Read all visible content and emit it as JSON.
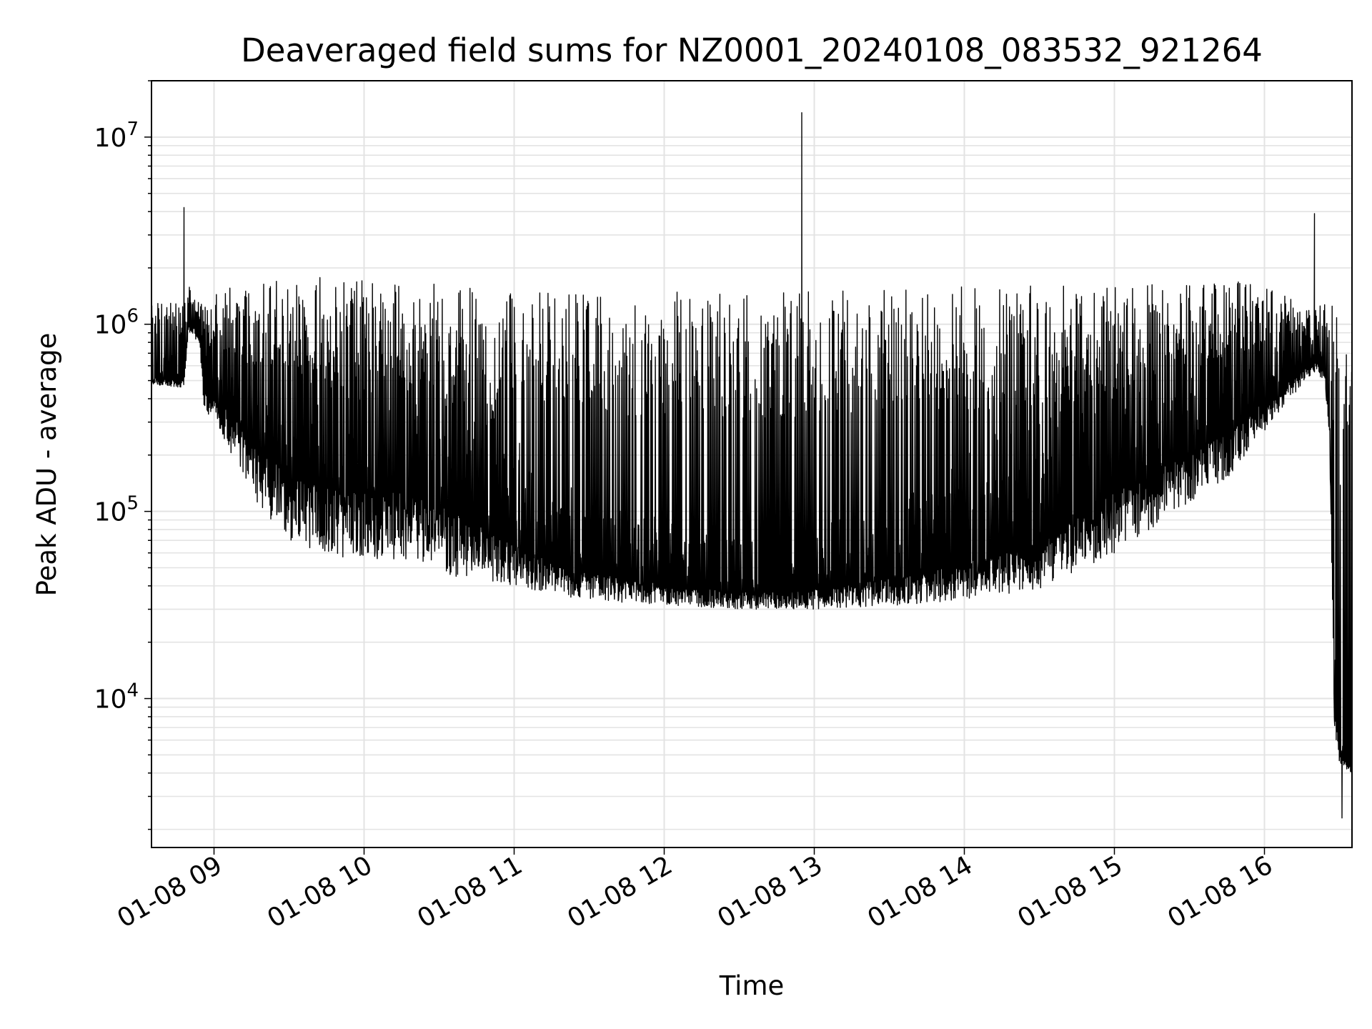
{
  "chart_data": {
    "type": "line",
    "title": "Deaveraged field sums for NZ0001_20240108_083532_921264",
    "xlabel": "Time",
    "ylabel": "Peak ADU - average",
    "xscale": "time",
    "yscale": "log",
    "grid": true,
    "legend": "none",
    "xlim": [
      "2024-01-08 08:35",
      "2024-01-08 16:35"
    ],
    "ylim": [
      1600,
      20000000
    ],
    "x_ticks": [
      "2024-01-08 09:00",
      "2024-01-08 10:00",
      "2024-01-08 11:00",
      "2024-01-08 12:00",
      "2024-01-08 13:00",
      "2024-01-08 14:00",
      "2024-01-08 15:00",
      "2024-01-08 16:00"
    ],
    "x_tick_labels": [
      "01-08 09",
      "01-08 10",
      "01-08 11",
      "01-08 12",
      "01-08 13",
      "01-08 14",
      "01-08 15",
      "01-08 16"
    ],
    "y_tick_labels": [
      {
        "value": 10000,
        "base": "10",
        "exp": "4"
      },
      {
        "value": 100000,
        "base": "10",
        "exp": "5"
      },
      {
        "value": 1000000,
        "base": "10",
        "exp": "6"
      },
      {
        "value": 10000000,
        "base": "10",
        "exp": "7"
      }
    ],
    "series": [
      {
        "color": "#000000",
        "envelope": [
          {
            "t": "2024-01-08 08:35",
            "lo": 480000,
            "hi": 650000
          },
          {
            "t": "2024-01-08 08:48",
            "lo": 450000,
            "hi": 700000
          },
          {
            "t": "2024-01-08 08:50",
            "lo": 900000,
            "hi": 1700000
          },
          {
            "t": "2024-01-08 08:54",
            "lo": 800000,
            "hi": 1300000
          },
          {
            "t": "2024-01-08 08:56",
            "lo": 350000,
            "hi": 1000000
          },
          {
            "t": "2024-01-08 09:00",
            "lo": 300000,
            "hi": 1500000
          },
          {
            "t": "2024-01-08 09:15",
            "lo": 120000,
            "hi": 1700000
          },
          {
            "t": "2024-01-08 09:30",
            "lo": 70000,
            "hi": 1800000
          },
          {
            "t": "2024-01-08 09:50",
            "lo": 55000,
            "hi": 1600000
          },
          {
            "t": "2024-01-08 10:20",
            "lo": 55000,
            "hi": 1500000
          },
          {
            "t": "2024-01-08 10:35",
            "lo": 45000,
            "hi": 1100000
          },
          {
            "t": "2024-01-08 11:00",
            "lo": 40000,
            "hi": 300000
          },
          {
            "t": "2024-01-08 11:20",
            "lo": 35000,
            "hi": 150000
          },
          {
            "t": "2024-01-08 11:50",
            "lo": 32000,
            "hi": 100000
          },
          {
            "t": "2024-01-08 12:30",
            "lo": 30000,
            "hi": 70000
          },
          {
            "t": "2024-01-08 13:00",
            "lo": 30000,
            "hi": 80000
          },
          {
            "t": "2024-01-08 13:45",
            "lo": 32000,
            "hi": 150000
          },
          {
            "t": "2024-01-08 14:30",
            "lo": 38000,
            "hi": 400000
          },
          {
            "t": "2024-01-08 15:00",
            "lo": 60000,
            "hi": 1200000
          },
          {
            "t": "2024-01-08 15:45",
            "lo": 150000,
            "hi": 1400000
          },
          {
            "t": "2024-01-08 16:10",
            "lo": 400000,
            "hi": 1000000
          },
          {
            "t": "2024-01-08 16:20",
            "lo": 550000,
            "hi": 1000000
          },
          {
            "t": "2024-01-08 16:24",
            "lo": 500000,
            "hi": 800000
          },
          {
            "t": "2024-01-08 16:26",
            "lo": 250000,
            "hi": 400000
          },
          {
            "t": "2024-01-08 16:28",
            "lo": 7000,
            "hi": 20000
          },
          {
            "t": "2024-01-08 16:30",
            "lo": 4500,
            "hi": 6500
          },
          {
            "t": "2024-01-08 16:35",
            "lo": 4000,
            "hi": 5000
          }
        ],
        "spike_max": [
          {
            "t": "2024-01-08 09:00",
            "hi": 1300000
          },
          {
            "t": "2024-01-08 09:30",
            "hi": 1900000
          },
          {
            "t": "2024-01-08 10:20",
            "hi": 1700000
          },
          {
            "t": "2024-01-08 11:00",
            "hi": 1500000
          },
          {
            "t": "2024-01-08 12:00",
            "hi": 1500000
          },
          {
            "t": "2024-01-08 13:00",
            "hi": 1500000
          },
          {
            "t": "2024-01-08 14:00",
            "hi": 1600000
          },
          {
            "t": "2024-01-08 15:00",
            "hi": 1600000
          },
          {
            "t": "2024-01-08 15:50",
            "hi": 1700000
          },
          {
            "t": "2024-01-08 16:20",
            "hi": 1300000
          }
        ],
        "peaks": [
          {
            "t": "2024-01-08 08:48",
            "v": 4200000
          },
          {
            "t": "2024-01-08 12:55",
            "v": 13500000
          },
          {
            "t": "2024-01-08 16:20",
            "v": 3900000
          }
        ],
        "minimum": {
          "t": "2024-01-08 16:31",
          "v": 2300
        }
      }
    ]
  }
}
